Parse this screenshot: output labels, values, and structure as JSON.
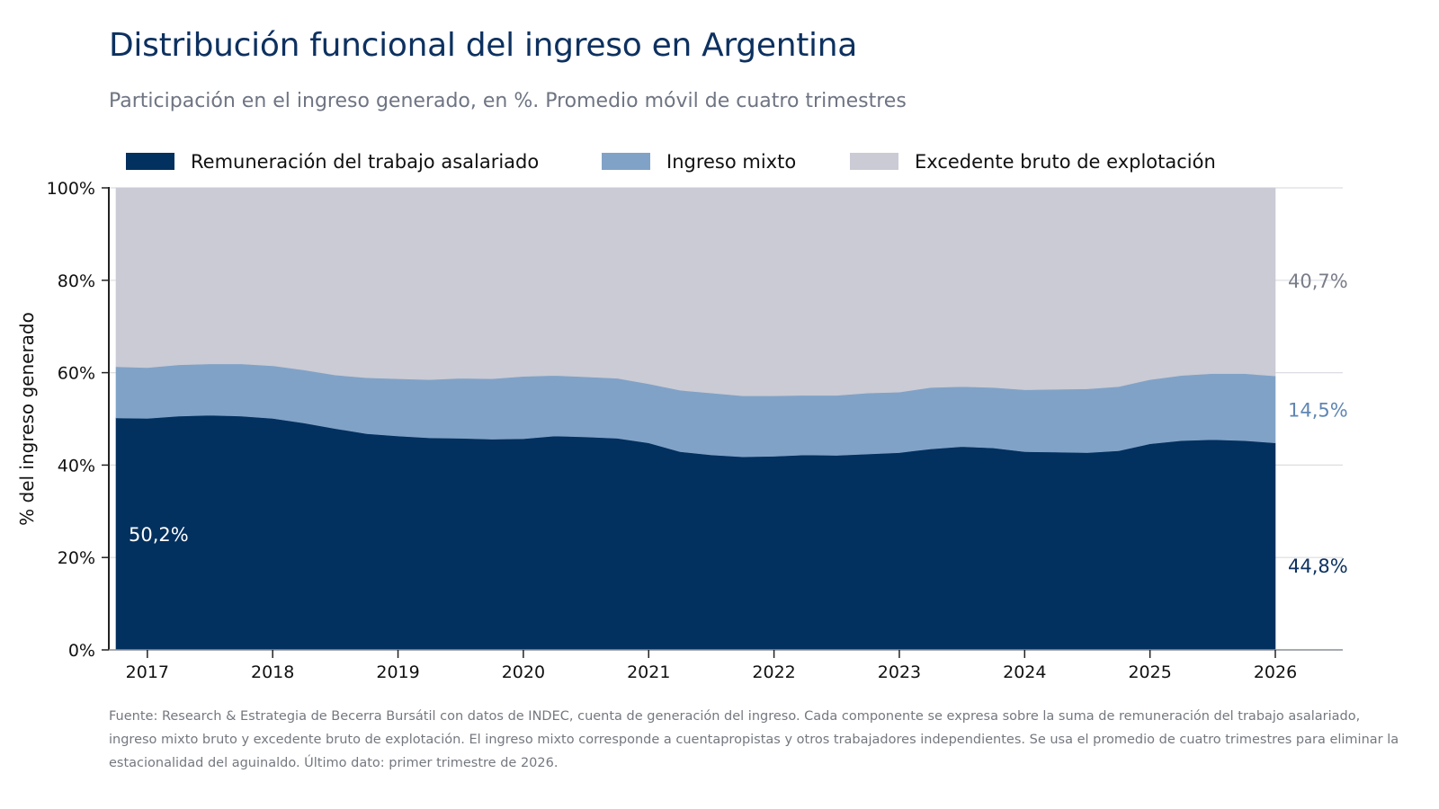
{
  "title": "Distribución funcional del ingreso en Argentina",
  "subtitle": "Participación en el ingreso generado, en %. Promedio móvil de cuatro trimestres",
  "source": "Fuente: Research & Estrategia de Becerra Bursátil con datos de INDEC, cuenta de generación del ingreso. Cada componente se expresa sobre la suma de remuneración del trabajo asalariado, ingreso mixto bruto y excedente bruto de explotación. El ingreso mixto corresponde a cuentapropistas y otros trabajadores independientes. Se usa el promedio de cuatro trimestres para eliminar la estacionalidad del aguinaldo. Último dato: primer trimestre de 2026.",
  "chart_data": {
    "type": "area",
    "stacked": true,
    "ylabel": "% del ingreso generado",
    "xlim": [
      2016.75,
      2026.5
    ],
    "ylim": [
      0,
      100
    ],
    "x_ticks": [
      2017,
      2018,
      2019,
      2020,
      2021,
      2022,
      2023,
      2024,
      2025,
      2026
    ],
    "x_tick_labels": [
      "2017",
      "2018",
      "2019",
      "2020",
      "2021",
      "2022",
      "2023",
      "2024",
      "2025",
      "2026"
    ],
    "y_ticks": [
      0,
      20,
      40,
      60,
      80,
      100
    ],
    "y_tick_labels": [
      "0%",
      "20%",
      "40%",
      "60%",
      "80%",
      "100%"
    ],
    "grid": "horizontal",
    "legend_position": "top",
    "x": [
      2016.75,
      2017.0,
      2017.25,
      2017.5,
      2017.75,
      2018.0,
      2018.25,
      2018.5,
      2018.75,
      2019.0,
      2019.25,
      2019.5,
      2019.75,
      2020.0,
      2020.25,
      2020.5,
      2020.75,
      2021.0,
      2021.25,
      2021.5,
      2021.75,
      2022.0,
      2022.25,
      2022.5,
      2022.75,
      2023.0,
      2023.25,
      2023.5,
      2023.75,
      2024.0,
      2024.25,
      2024.5,
      2024.75,
      2025.0,
      2025.25,
      2025.5,
      2025.75,
      2026.0
    ],
    "series": [
      {
        "name": "Remuneración del trabajo asalariado",
        "color": "#02305f",
        "values": [
          50.2,
          50.1,
          50.6,
          50.8,
          50.6,
          50.1,
          49.1,
          47.9,
          46.8,
          46.3,
          45.9,
          45.8,
          45.6,
          45.7,
          46.3,
          46.1,
          45.8,
          44.8,
          42.9,
          42.2,
          41.8,
          41.9,
          42.2,
          42.1,
          42.4,
          42.7,
          43.5,
          44.0,
          43.7,
          42.9,
          42.8,
          42.7,
          43.1,
          44.6,
          45.3,
          45.5,
          45.3,
          44.8
        ]
      },
      {
        "name": "Ingreso mixto",
        "color": "#81a2c7",
        "values": [
          11.1,
          11.0,
          11.1,
          11.1,
          11.3,
          11.4,
          11.5,
          11.6,
          12.1,
          12.4,
          12.6,
          13.0,
          13.1,
          13.5,
          13.1,
          13.0,
          13.0,
          12.8,
          13.3,
          13.4,
          13.2,
          13.1,
          12.9,
          13.0,
          13.2,
          13.1,
          13.3,
          13.0,
          13.1,
          13.4,
          13.6,
          13.8,
          13.9,
          13.9,
          14.1,
          14.3,
          14.5,
          14.5
        ]
      },
      {
        "name": "Excedente bruto de explotación",
        "color": "#cacbd4",
        "values": [
          38.7,
          38.9,
          38.3,
          38.1,
          38.1,
          38.5,
          39.4,
          40.5,
          41.1,
          41.3,
          41.5,
          41.2,
          41.3,
          40.8,
          40.6,
          40.9,
          41.2,
          42.4,
          43.8,
          44.4,
          45.0,
          45.0,
          44.9,
          44.9,
          44.4,
          44.2,
          43.2,
          43.0,
          43.2,
          43.7,
          43.6,
          43.5,
          43.0,
          41.5,
          40.6,
          40.2,
          40.2,
          40.7
        ]
      }
    ],
    "annotations": [
      {
        "label": "50,2%",
        "series": "Remuneración del trabajo asalariado",
        "position": "start",
        "color": "#ffffff"
      },
      {
        "label": "44,8%",
        "series": "Remuneración del trabajo asalariado",
        "position": "end",
        "color": "#0d3160"
      },
      {
        "label": "14,5%",
        "series": "Ingreso mixto",
        "position": "end",
        "color": "#5f86b3"
      },
      {
        "label": "40,7%",
        "series": "Excedente bruto de explotación",
        "position": "end",
        "color": "#797d88"
      }
    ]
  }
}
